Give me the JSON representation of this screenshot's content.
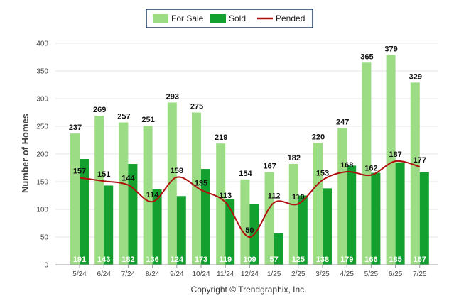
{
  "chart_data": {
    "type": "bar",
    "ylabel": "Number of Homes",
    "ylim": [
      0,
      400
    ],
    "yticks": [
      0,
      50,
      100,
      150,
      200,
      250,
      300,
      350,
      400
    ],
    "grid": true,
    "legend_position": "top-center",
    "categories": [
      "5/24",
      "6/24",
      "7/24",
      "8/24",
      "9/24",
      "10/24",
      "11/24",
      "12/24",
      "1/25",
      "2/25",
      "3/25",
      "4/25",
      "5/25",
      "6/25",
      "7/25"
    ],
    "series": [
      {
        "name": "For Sale",
        "type": "bar",
        "color": "#9cdc84",
        "values": [
          237,
          269,
          257,
          251,
          293,
          275,
          219,
          154,
          167,
          182,
          220,
          247,
          365,
          379,
          329
        ]
      },
      {
        "name": "Sold",
        "type": "bar",
        "color": "#14a02e",
        "values": [
          191,
          143,
          182,
          136,
          124,
          173,
          119,
          109,
          57,
          125,
          138,
          179,
          166,
          185,
          167
        ]
      },
      {
        "name": "Pended",
        "type": "line",
        "color": "#b01010",
        "values": [
          157,
          151,
          144,
          114,
          158,
          135,
          113,
          50,
          112,
          110,
          153,
          168,
          162,
          187,
          177
        ]
      }
    ]
  },
  "footer": {
    "copyright": "Copyright © Trendgraphix, Inc."
  }
}
